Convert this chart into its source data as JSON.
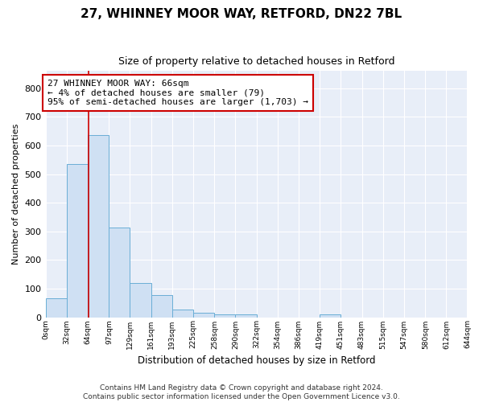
{
  "title_line1": "27, WHINNEY MOOR WAY, RETFORD, DN22 7BL",
  "title_line2": "Size of property relative to detached houses in Retford",
  "xlabel": "Distribution of detached houses by size in Retford",
  "ylabel": "Number of detached properties",
  "bar_left_edges": [
    0,
    32,
    64,
    97,
    129,
    161,
    193,
    225,
    258,
    290,
    322,
    354,
    386,
    419,
    451,
    483,
    515,
    547,
    580,
    612
  ],
  "bar_widths": [
    32,
    33,
    33,
    32,
    32,
    32,
    32,
    33,
    32,
    32,
    32,
    32,
    33,
    32,
    32,
    32,
    32,
    33,
    32,
    32
  ],
  "bar_heights": [
    65,
    535,
    635,
    312,
    120,
    78,
    28,
    15,
    11,
    10,
    0,
    0,
    0,
    10,
    0,
    0,
    0,
    0,
    0,
    0
  ],
  "bar_facecolor": "#cfe0f3",
  "bar_edgecolor": "#6aaed6",
  "property_line_x": 66,
  "property_line_color": "#cc0000",
  "annotation_text": "27 WHINNEY MOOR WAY: 66sqm\n← 4% of detached houses are smaller (79)\n95% of semi-detached houses are larger (1,703) →",
  "annotation_box_edgecolor": "#cc0000",
  "annotation_box_facecolor": "white",
  "ylim": [
    0,
    860
  ],
  "xlim": [
    0,
    644
  ],
  "yticks": [
    0,
    100,
    200,
    300,
    400,
    500,
    600,
    700,
    800
  ],
  "xtick_labels": [
    "0sqm",
    "32sqm",
    "64sqm",
    "97sqm",
    "129sqm",
    "161sqm",
    "193sqm",
    "225sqm",
    "258sqm",
    "290sqm",
    "322sqm",
    "354sqm",
    "386sqm",
    "419sqm",
    "451sqm",
    "483sqm",
    "515sqm",
    "547sqm",
    "580sqm",
    "612sqm",
    "644sqm"
  ],
  "xtick_positions": [
    0,
    32,
    64,
    97,
    129,
    161,
    193,
    225,
    258,
    290,
    322,
    354,
    386,
    419,
    451,
    483,
    515,
    547,
    580,
    612,
    644
  ],
  "footer_text": "Contains HM Land Registry data © Crown copyright and database right 2024.\nContains public sector information licensed under the Open Government Licence v3.0.",
  "background_color": "#e8eef8",
  "grid_color": "#ffffff",
  "title1_fontsize": 11,
  "title2_fontsize": 9,
  "annotation_fontsize": 8,
  "footer_fontsize": 6.5,
  "ylabel_fontsize": 8,
  "xlabel_fontsize": 8.5
}
